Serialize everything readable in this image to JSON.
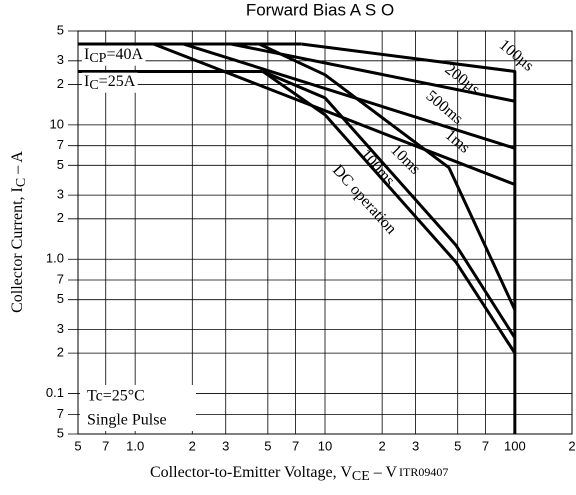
{
  "chart_data": {
    "type": "line",
    "title": "Forward Bias A S O",
    "x_label": [
      "Collector-to-Emitter Voltage, V",
      "CE",
      " – V"
    ],
    "code": "ITR09407",
    "y_label": [
      "Collector Current, I",
      "C",
      " – A"
    ],
    "log_x": true,
    "log_y": true,
    "grid": true,
    "xlim": [
      0.5,
      200
    ],
    "ylim": [
      0.05,
      50
    ],
    "xticks": [
      {
        "value": 0.5,
        "label": "5"
      },
      {
        "value": 0.7,
        "label": "7"
      },
      {
        "value": 1,
        "label": "1.0"
      },
      {
        "value": 2,
        "label": "2"
      },
      {
        "value": 3,
        "label": "3"
      },
      {
        "value": 5,
        "label": "5"
      },
      {
        "value": 7,
        "label": "7"
      },
      10,
      {
        "value": 20,
        "label": "2"
      },
      {
        "value": 30,
        "label": "3"
      },
      {
        "value": 50,
        "label": "5"
      },
      {
        "value": 70,
        "label": "7"
      },
      100,
      {
        "value": 200,
        "label": "2"
      }
    ],
    "yticks": [
      {
        "value": 50,
        "label": "5"
      },
      {
        "value": 30,
        "label": "3"
      },
      {
        "value": 20,
        "label": "2"
      },
      10,
      {
        "value": 7,
        "label": "7"
      },
      {
        "value": 5,
        "label": "5"
      },
      {
        "value": 3,
        "label": "3"
      },
      {
        "value": 2,
        "label": "2"
      },
      {
        "value": 1,
        "label": "1.0"
      },
      {
        "value": 0.7,
        "label": "7"
      },
      {
        "value": 0.5,
        "label": "5"
      },
      {
        "value": 0.3,
        "label": "3"
      },
      {
        "value": 0.2,
        "label": "2"
      },
      0.1,
      {
        "value": 0.07,
        "label": "7"
      },
      {
        "value": 0.05,
        "label": "5"
      }
    ],
    "series": [
      {
        "name": [
          "I",
          "CP",
          "=40A"
        ],
        "color": "#000000",
        "x": [
          0.5,
          7.5
        ],
        "values": [
          40,
          40
        ]
      },
      {
        "name": [
          "I",
          "C",
          "=25A"
        ],
        "color": "#000000",
        "x": [
          0.5,
          4.7
        ],
        "values": [
          25,
          25
        ]
      },
      {
        "name": [
          "100µs"
        ],
        "color": "#000000",
        "x": [
          7.5,
          100,
          100
        ],
        "values": [
          40,
          25,
          0.05
        ]
      },
      {
        "name": [
          "200µs"
        ],
        "color": "#000000",
        "x": [
          3.2,
          100
        ],
        "values": [
          40,
          15
        ]
      },
      {
        "name": [
          "500ms"
        ],
        "color": "#000000",
        "x": [
          1.8,
          100
        ],
        "values": [
          40,
          6.7
        ]
      },
      {
        "name": [
          "1ms"
        ],
        "color": "#000000",
        "x": [
          1.25,
          100
        ],
        "values": [
          40,
          3.6
        ]
      },
      {
        "name": [
          "10ms"
        ],
        "color": "#000000",
        "x": [
          4.5,
          10,
          45,
          100
        ],
        "values": [
          40,
          23.6,
          4.8,
          0.42
        ]
      },
      {
        "name": [
          "100ms"
        ],
        "color": "#000000",
        "x": [
          4.7,
          10,
          49,
          100
        ],
        "values": [
          25,
          15.9,
          1.27,
          0.26
        ]
      },
      {
        "name": [
          "DC operation"
        ],
        "color": "#000000",
        "x": [
          4.7,
          10,
          49,
          100
        ],
        "values": [
          25,
          11.9,
          0.95,
          0.2
        ]
      }
    ],
    "annotations": [
      "Tc=25°C",
      "Single Pulse"
    ]
  }
}
